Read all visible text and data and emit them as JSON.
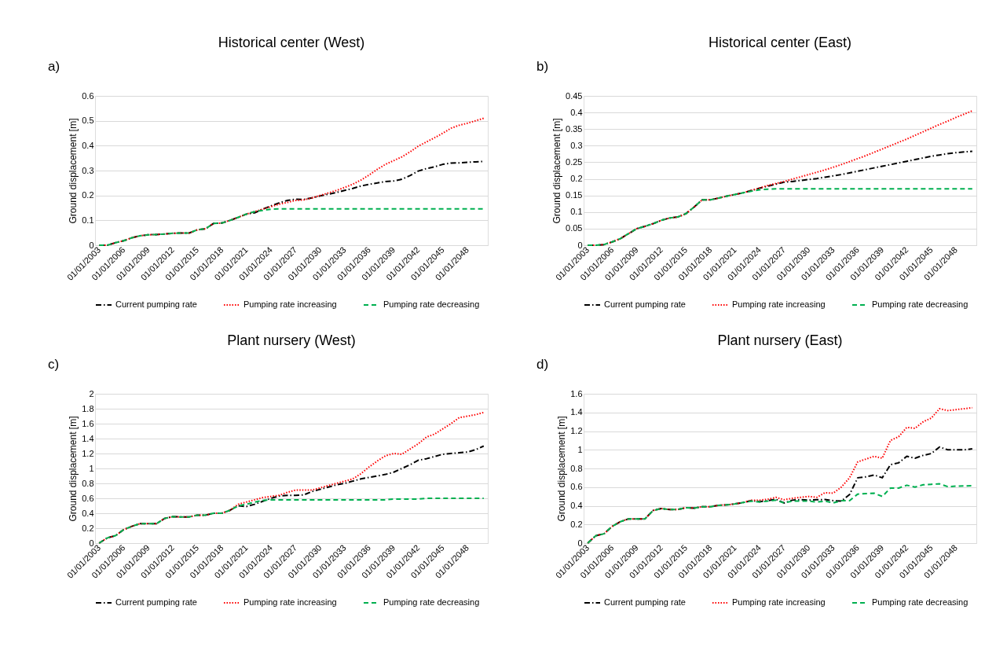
{
  "chart_data": [
    {
      "type": "line",
      "title": "Historical center (West)",
      "ylabel": "Ground displacement [m]",
      "annotations": [
        "a)"
      ],
      "legend": "bottom",
      "grid": "y",
      "categories": [
        "01/01/2003",
        null,
        null,
        "01/01/2006",
        null,
        null,
        "01/01/2009",
        null,
        null,
        "01/01/2012",
        null,
        null,
        "01/01/2015",
        null,
        null,
        "01/01/2018",
        null,
        null,
        "01/01/2021",
        null,
        null,
        "01/01/2024",
        null,
        null,
        "01/01/2027",
        null,
        null,
        "01/01/2030",
        null,
        null,
        "01/01/2033",
        null,
        null,
        "01/01/2036",
        null,
        null,
        "01/01/2039",
        null,
        null,
        "01/01/2042",
        null,
        null,
        "01/01/2045",
        null,
        null,
        "01/01/2048",
        null,
        null
      ],
      "ylim": [
        0,
        0.6
      ],
      "yticks": [
        0,
        0.1,
        0.2,
        0.3,
        0.4,
        0.5,
        0.6
      ],
      "series": [
        {
          "name": "Current pumping rate",
          "color": "#000000",
          "line_style": "dashdot",
          "values": [
            0,
            0,
            0.01,
            0.018,
            0.03,
            0.038,
            0.042,
            0.043,
            0.045,
            0.048,
            0.049,
            0.049,
            0.062,
            0.066,
            0.088,
            0.089,
            0.1,
            0.112,
            0.125,
            0.13,
            0.145,
            0.158,
            0.17,
            0.18,
            0.185,
            0.184,
            0.19,
            0.198,
            0.205,
            0.212,
            0.22,
            0.228,
            0.238,
            0.245,
            0.25,
            0.256,
            0.258,
            0.265,
            0.28,
            0.298,
            0.308,
            0.315,
            0.325,
            0.33,
            0.331,
            0.333,
            0.335,
            0.337
          ]
        },
        {
          "name": "Pumping rate increasing",
          "color": "#ff0000",
          "line_style": "dotted",
          "values": [
            0,
            0,
            0.01,
            0.018,
            0.03,
            0.038,
            0.042,
            0.043,
            0.045,
            0.048,
            0.049,
            0.049,
            0.062,
            0.066,
            0.088,
            0.089,
            0.1,
            0.112,
            0.125,
            0.135,
            0.145,
            0.155,
            0.165,
            0.172,
            0.18,
            0.182,
            0.19,
            0.2,
            0.21,
            0.22,
            0.232,
            0.245,
            0.262,
            0.282,
            0.305,
            0.325,
            0.34,
            0.355,
            0.375,
            0.398,
            0.415,
            0.432,
            0.45,
            0.47,
            0.482,
            0.49,
            0.5,
            0.51
          ]
        },
        {
          "name": "Pumping rate decreasing",
          "color": "#00b050",
          "line_style": "dashed",
          "values": [
            0,
            0,
            0.01,
            0.018,
            0.03,
            0.038,
            0.042,
            0.043,
            0.045,
            0.048,
            0.049,
            0.049,
            0.062,
            0.066,
            0.088,
            0.089,
            0.1,
            0.112,
            0.125,
            0.135,
            0.14,
            0.145,
            0.146,
            0.146,
            0.146,
            0.146,
            0.146,
            0.146,
            0.146,
            0.146,
            0.146,
            0.146,
            0.146,
            0.146,
            0.146,
            0.146,
            0.146,
            0.146,
            0.146,
            0.146,
            0.146,
            0.146,
            0.146,
            0.146,
            0.146,
            0.146,
            0.146,
            0.146
          ]
        }
      ]
    },
    {
      "type": "line",
      "title": "Historical center (East)",
      "ylabel": "Ground displacement [m]",
      "annotations": [
        "b)"
      ],
      "legend": "bottom",
      "grid": "y",
      "categories": [
        "01/01/2003",
        null,
        null,
        "01/01/2006",
        null,
        null,
        "01/01/2009",
        null,
        null,
        "01/01/2012",
        null,
        null,
        "01/01/2015",
        null,
        null,
        "01/01/2018",
        null,
        null,
        "01/01/2021",
        null,
        null,
        "01/01/2024",
        null,
        null,
        "01/01/2027",
        null,
        null,
        "01/01/2030",
        null,
        null,
        "01/01/2033",
        null,
        null,
        "01/01/2036",
        null,
        null,
        "01/01/2039",
        null,
        null,
        "01/01/2042",
        null,
        null,
        "01/01/2045",
        null,
        null,
        "01/01/2048",
        null,
        null
      ],
      "ylim": [
        0,
        0.45
      ],
      "yticks": [
        0,
        0.05,
        0.1,
        0.15,
        0.2,
        0.25,
        0.3,
        0.35,
        0.4,
        0.45
      ],
      "series": [
        {
          "name": "Current pumping rate",
          "color": "#000000",
          "line_style": "dashdot",
          "values": [
            0,
            0,
            0.002,
            0.01,
            0.02,
            0.035,
            0.05,
            0.057,
            0.065,
            0.075,
            0.082,
            0.085,
            0.095,
            0.115,
            0.137,
            0.137,
            0.142,
            0.148,
            0.153,
            0.158,
            0.165,
            0.172,
            0.178,
            0.184,
            0.19,
            0.192,
            0.195,
            0.198,
            0.201,
            0.205,
            0.209,
            0.213,
            0.218,
            0.223,
            0.228,
            0.233,
            0.238,
            0.243,
            0.248,
            0.253,
            0.258,
            0.263,
            0.268,
            0.272,
            0.276,
            0.279,
            0.281,
            0.283
          ]
        },
        {
          "name": "Pumping rate increasing",
          "color": "#ff0000",
          "line_style": "dotted",
          "values": [
            0,
            0,
            0.002,
            0.01,
            0.02,
            0.035,
            0.05,
            0.057,
            0.065,
            0.075,
            0.082,
            0.085,
            0.095,
            0.115,
            0.137,
            0.137,
            0.142,
            0.148,
            0.153,
            0.158,
            0.165,
            0.172,
            0.18,
            0.186,
            0.192,
            0.199,
            0.206,
            0.213,
            0.22,
            0.227,
            0.235,
            0.243,
            0.252,
            0.261,
            0.27,
            0.28,
            0.29,
            0.3,
            0.31,
            0.32,
            0.331,
            0.342,
            0.353,
            0.364,
            0.374,
            0.385,
            0.395,
            0.405
          ]
        },
        {
          "name": "Pumping rate decreasing",
          "color": "#00b050",
          "line_style": "dashed",
          "values": [
            0,
            0,
            0.002,
            0.01,
            0.02,
            0.035,
            0.05,
            0.057,
            0.065,
            0.075,
            0.082,
            0.085,
            0.095,
            0.115,
            0.137,
            0.137,
            0.142,
            0.148,
            0.153,
            0.158,
            0.163,
            0.167,
            0.169,
            0.17,
            0.17,
            0.17,
            0.17,
            0.17,
            0.17,
            0.17,
            0.17,
            0.17,
            0.17,
            0.17,
            0.17,
            0.17,
            0.17,
            0.17,
            0.17,
            0.17,
            0.17,
            0.17,
            0.17,
            0.17,
            0.17,
            0.17,
            0.17,
            0.17
          ]
        }
      ]
    },
    {
      "type": "line",
      "title": "Plant nursery (West)",
      "ylabel": "Ground displacement [m]",
      "annotations": [
        "c)"
      ],
      "legend": "bottom",
      "grid": "y",
      "categories": [
        "01/01/2003",
        null,
        null,
        "01/01/2006",
        null,
        null,
        "01/01/2009",
        null,
        null,
        "01/01/2012",
        null,
        null,
        "01/01/2015",
        null,
        null,
        "01/01/2018",
        null,
        null,
        "01/01/2021",
        null,
        null,
        "01/01/2024",
        null,
        null,
        "01/01/2027",
        null,
        null,
        "01/01/2030",
        null,
        null,
        "01/01/2033",
        null,
        null,
        "01/01/2036",
        null,
        null,
        "01/01/2039",
        null,
        null,
        "01/01/2042",
        null,
        null,
        "01/01/2045",
        null,
        null,
        "01/01/2048",
        null,
        null
      ],
      "ylim": [
        0,
        2
      ],
      "yticks": [
        0,
        0.2,
        0.4,
        0.6,
        0.8,
        1,
        1.2,
        1.4,
        1.6,
        1.8,
        2
      ],
      "series": [
        {
          "name": "Current pumping rate",
          "color": "#000000",
          "line_style": "dashdot",
          "values": [
            0,
            0.07,
            0.1,
            0.18,
            0.225,
            0.26,
            0.26,
            0.26,
            0.33,
            0.355,
            0.35,
            0.35,
            0.375,
            0.375,
            0.4,
            0.4,
            0.44,
            0.5,
            0.49,
            0.52,
            0.56,
            0.6,
            0.63,
            0.64,
            0.64,
            0.645,
            0.69,
            0.72,
            0.75,
            0.78,
            0.8,
            0.83,
            0.86,
            0.88,
            0.9,
            0.92,
            0.95,
            1.0,
            1.05,
            1.11,
            1.13,
            1.16,
            1.19,
            1.2,
            1.21,
            1.22,
            1.25,
            1.3
          ]
        },
        {
          "name": "Pumping rate increasing",
          "color": "#ff0000",
          "line_style": "dotted",
          "values": [
            0,
            0.07,
            0.1,
            0.18,
            0.225,
            0.26,
            0.26,
            0.26,
            0.33,
            0.355,
            0.35,
            0.35,
            0.375,
            0.375,
            0.4,
            0.4,
            0.44,
            0.52,
            0.55,
            0.58,
            0.61,
            0.625,
            0.64,
            0.68,
            0.71,
            0.71,
            0.71,
            0.74,
            0.77,
            0.8,
            0.83,
            0.86,
            0.93,
            1.02,
            1.1,
            1.17,
            1.2,
            1.19,
            1.26,
            1.33,
            1.42,
            1.46,
            1.53,
            1.6,
            1.68,
            1.7,
            1.72,
            1.75
          ]
        },
        {
          "name": "Pumping rate decreasing",
          "color": "#00b050",
          "line_style": "dashed",
          "values": [
            0,
            0.07,
            0.1,
            0.18,
            0.225,
            0.26,
            0.26,
            0.26,
            0.33,
            0.355,
            0.35,
            0.35,
            0.375,
            0.375,
            0.4,
            0.4,
            0.44,
            0.5,
            0.52,
            0.55,
            0.57,
            0.58,
            0.58,
            0.58,
            0.58,
            0.58,
            0.58,
            0.58,
            0.58,
            0.58,
            0.58,
            0.58,
            0.58,
            0.58,
            0.58,
            0.58,
            0.59,
            0.59,
            0.59,
            0.59,
            0.6,
            0.6,
            0.6,
            0.6,
            0.6,
            0.6,
            0.6,
            0.6
          ]
        }
      ]
    },
    {
      "type": "line",
      "title": "Plant nursery (East)",
      "ylabel": "Ground displacement [m]",
      "annotations": [
        "d)"
      ],
      "legend": "bottom",
      "grid": "y",
      "categories": [
        "01/01/2003",
        null,
        null,
        "01/01/2006",
        null,
        null,
        "01/01/2009",
        null,
        null,
        "01/01/2012",
        null,
        null,
        "01/01/2015",
        null,
        null,
        "01/01/2018",
        null,
        null,
        "01/01/2021",
        null,
        null,
        "01/01/2024",
        null,
        null,
        "01/01/2027",
        null,
        null,
        "01/01/2030",
        null,
        null,
        "01/01/2033",
        null,
        null,
        "01/01/2036",
        null,
        null,
        "01/01/2039",
        null,
        null,
        "01/01/2042",
        null,
        null,
        "01/01/2045",
        null,
        null,
        "01/01/2048",
        null,
        null
      ],
      "ylim": [
        0,
        1.6
      ],
      "yticks": [
        0,
        0.2,
        0.4,
        0.6,
        0.8,
        1,
        1.2,
        1.4,
        1.6
      ],
      "series": [
        {
          "name": "Current pumping rate",
          "color": "#000000",
          "line_style": "dashdot",
          "values": [
            0,
            0.08,
            0.1,
            0.18,
            0.23,
            0.26,
            0.26,
            0.26,
            0.35,
            0.37,
            0.36,
            0.36,
            0.38,
            0.375,
            0.39,
            0.39,
            0.405,
            0.41,
            0.42,
            0.435,
            0.455,
            0.445,
            0.455,
            0.47,
            0.43,
            0.46,
            0.465,
            0.46,
            0.465,
            0.467,
            0.455,
            0.45,
            0.52,
            0.7,
            0.71,
            0.73,
            0.7,
            0.84,
            0.86,
            0.93,
            0.91,
            0.94,
            0.96,
            1.03,
            1.0,
            1.0,
            1.0,
            1.01
          ]
        },
        {
          "name": "Pumping rate increasing",
          "color": "#ff0000",
          "line_style": "dotted",
          "values": [
            0,
            0.08,
            0.1,
            0.18,
            0.23,
            0.26,
            0.26,
            0.26,
            0.35,
            0.37,
            0.36,
            0.36,
            0.38,
            0.375,
            0.39,
            0.39,
            0.405,
            0.41,
            0.42,
            0.435,
            0.46,
            0.46,
            0.47,
            0.49,
            0.465,
            0.48,
            0.49,
            0.5,
            0.49,
            0.54,
            0.535,
            0.6,
            0.7,
            0.87,
            0.9,
            0.93,
            0.91,
            1.1,
            1.14,
            1.24,
            1.23,
            1.3,
            1.34,
            1.44,
            1.42,
            1.43,
            1.44,
            1.45
          ]
        },
        {
          "name": "Pumping rate decreasing",
          "color": "#00b050",
          "line_style": "dashed",
          "values": [
            0,
            0.08,
            0.1,
            0.18,
            0.23,
            0.26,
            0.26,
            0.26,
            0.35,
            0.37,
            0.36,
            0.36,
            0.38,
            0.375,
            0.39,
            0.39,
            0.405,
            0.41,
            0.42,
            0.435,
            0.45,
            0.44,
            0.45,
            0.46,
            0.43,
            0.45,
            0.45,
            0.45,
            0.44,
            0.45,
            0.43,
            0.455,
            0.455,
            0.525,
            0.53,
            0.535,
            0.5,
            0.59,
            0.59,
            0.62,
            0.6,
            0.625,
            0.63,
            0.635,
            0.605,
            0.61,
            0.613,
            0.615
          ]
        }
      ]
    }
  ]
}
